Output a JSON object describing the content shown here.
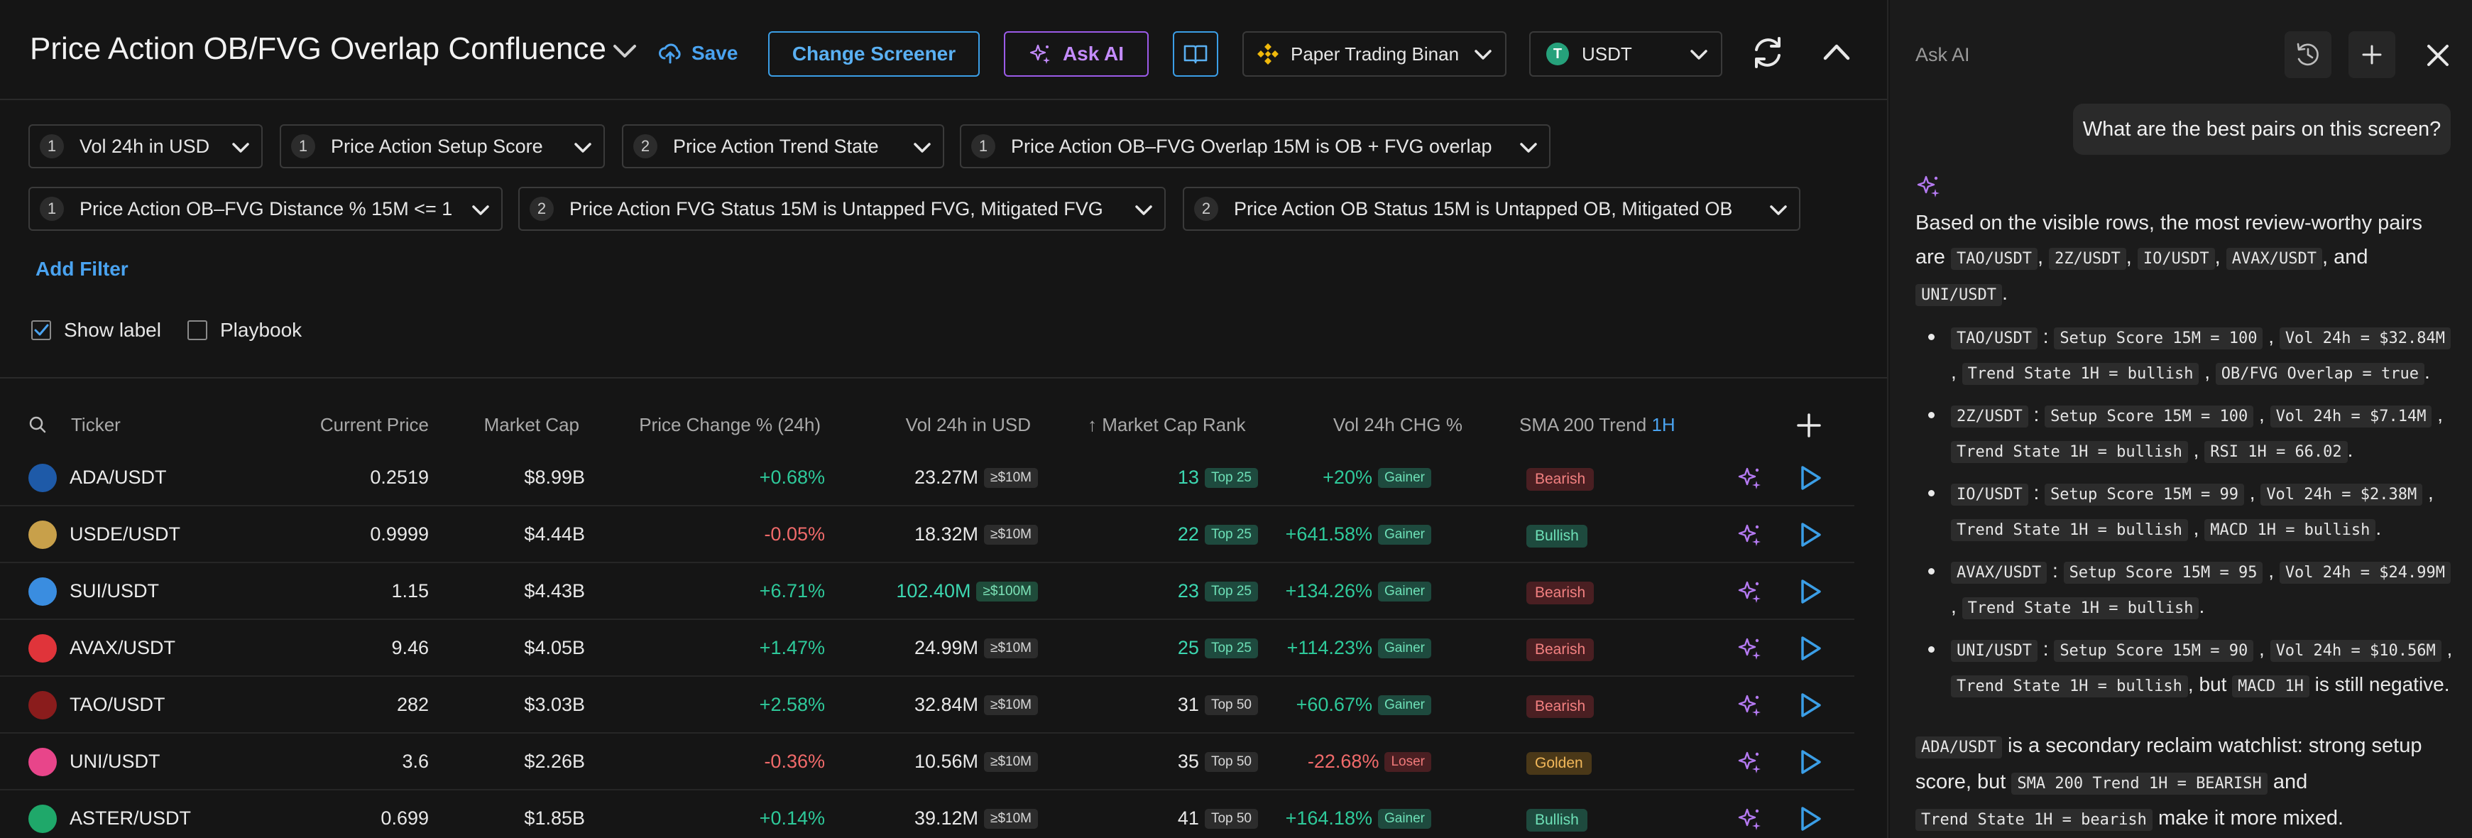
{
  "header": {
    "title": "Price Action OB/FVG Overlap Confluence",
    "save_label": "Save",
    "change_screener_label": "Change Screener",
    "ask_ai_label": "Ask AI",
    "exchange_label": "Paper Trading Binan",
    "currency_label": "USDT",
    "currency_glyph": "T"
  },
  "filters": {
    "chips": [
      {
        "num": "1",
        "label": "Vol 24h in USD"
      },
      {
        "num": "1",
        "label": "Price Action Setup Score"
      },
      {
        "num": "2",
        "label": "Price Action Trend State"
      },
      {
        "num": "1",
        "label": "Price Action OB–FVG Overlap 15M is OB + FVG overlap"
      },
      {
        "num": "1",
        "label": "Price Action OB–FVG Distance % 15M <= 1"
      },
      {
        "num": "2",
        "label": "Price Action FVG Status 15M is Untapped FVG, Mitigated FVG"
      },
      {
        "num": "2",
        "label": "Price Action OB Status 15M is Untapped OB, Mitigated OB"
      }
    ],
    "add_filter_label": "Add Filter",
    "show_label": "Show label",
    "show_label_checked": true,
    "playbook": "Playbook",
    "playbook_checked": false
  },
  "table": {
    "columns": {
      "ticker": "Ticker",
      "price": "Current Price",
      "mcap": "Market Cap",
      "change": "Price Change % (24h)",
      "vol": "Vol 24h in USD",
      "rank": "↑ Market Cap Rank",
      "volchg": "Vol 24h CHG %",
      "sma": "SMA 200 Trend",
      "sma_tf": "1H"
    },
    "rows": [
      {
        "ticker": "ADA/USDT",
        "price": "0.2519",
        "mcap": "$8.99B",
        "change": "+0.68%",
        "vol": "23.27M",
        "vol_tag": "≥$10M",
        "rank": "13",
        "rank_tag": "Top 25",
        "volchg": "+20%",
        "volchg_tag": "Gainer",
        "sma": "Bearish"
      },
      {
        "ticker": "USDE/USDT",
        "price": "0.9999",
        "mcap": "$4.44B",
        "change": "-0.05%",
        "vol": "18.32M",
        "vol_tag": "≥$10M",
        "rank": "22",
        "rank_tag": "Top 25",
        "volchg": "+641.58%",
        "volchg_tag": "Gainer",
        "sma": "Bullish"
      },
      {
        "ticker": "SUI/USDT",
        "price": "1.15",
        "mcap": "$4.43B",
        "change": "+6.71%",
        "vol": "102.40M",
        "vol_tag": "≥$100M",
        "rank": "23",
        "rank_tag": "Top 25",
        "volchg": "+134.26%",
        "volchg_tag": "Gainer",
        "sma": "Bearish"
      },
      {
        "ticker": "AVAX/USDT",
        "price": "9.46",
        "mcap": "$4.05B",
        "change": "+1.47%",
        "vol": "24.99M",
        "vol_tag": "≥$10M",
        "rank": "25",
        "rank_tag": "Top 25",
        "volchg": "+114.23%",
        "volchg_tag": "Gainer",
        "sma": "Bearish"
      },
      {
        "ticker": "TAO/USDT",
        "price": "282",
        "mcap": "$3.03B",
        "change": "+2.58%",
        "vol": "32.84M",
        "vol_tag": "≥$10M",
        "rank": "31",
        "rank_tag": "Top 50",
        "volchg": "+60.67%",
        "volchg_tag": "Gainer",
        "sma": "Bearish"
      },
      {
        "ticker": "UNI/USDT",
        "price": "3.6",
        "mcap": "$2.26B",
        "change": "-0.36%",
        "vol": "10.56M",
        "vol_tag": "≥$10M",
        "rank": "35",
        "rank_tag": "Top 50",
        "volchg": "-22.68%",
        "volchg_tag": "Loser",
        "sma": "Golden"
      },
      {
        "ticker": "ASTER/USDT",
        "price": "0.699",
        "mcap": "$1.85B",
        "change": "+0.14%",
        "vol": "39.12M",
        "vol_tag": "≥$10M",
        "rank": "41",
        "rank_tag": "Top 50",
        "volchg": "+164.18%",
        "volchg_tag": "Gainer",
        "sma": "Bullish"
      }
    ]
  },
  "ai_panel": {
    "title": "Ask AI",
    "user_message": "What are the best pairs on this screen?",
    "intro": {
      "a": "Based on the visible rows, the most review-worthy pairs are",
      "c1": "TAO/USDT",
      "c2": "2Z/USDT",
      "c3": "IO/USDT",
      "c4": "AVAX/USDT",
      "and": ", and",
      "c5": "UNI/USDT"
    },
    "bullets": [
      {
        "pair": "TAO/USDT",
        "codes": [
          "Setup Score 15M = 100",
          "Vol 24h = $32.84M",
          "Trend State 1H = bullish",
          "OB/FVG Overlap = true"
        ],
        "tail": "."
      },
      {
        "pair": "2Z/USDT",
        "codes": [
          "Setup Score 15M = 100",
          "Vol 24h = $7.14M",
          "Trend State 1H = bullish",
          "RSI 1H = 66.02"
        ],
        "tail": "."
      },
      {
        "pair": "IO/USDT",
        "codes": [
          "Setup Score 15M = 99",
          "Vol 24h = $2.38M",
          "Trend State 1H = bullish",
          "MACD 1H = bullish"
        ],
        "tail": "."
      },
      {
        "pair": "AVAX/USDT",
        "codes": [
          "Setup Score 15M = 95",
          "Vol 24h = $24.99M",
          "Trend State 1H = bullish"
        ],
        "tail": "."
      },
      {
        "pair": "UNI/USDT",
        "codes": [
          "Setup Score 15M = 90",
          "Vol 24h = $10.56M",
          "Trend State 1H = bullish"
        ],
        "but": ", but",
        "code_extra": "MACD 1H",
        "tail": "is still negative."
      }
    ],
    "summary": {
      "c1": "ADA/USDT",
      "t1": "is a secondary reclaim watchlist: strong setup score, but",
      "c2": "SMA 200 Trend 1H = BEARISH",
      "t2": "and",
      "c3": "Trend State 1H = bearish",
      "t3": "make it more mixed."
    }
  },
  "colors": {
    "accent_blue": "#3b9ee6",
    "ai_purple": "#9b5be8",
    "positive": "#2ec99a",
    "negative": "#f06a6a"
  }
}
